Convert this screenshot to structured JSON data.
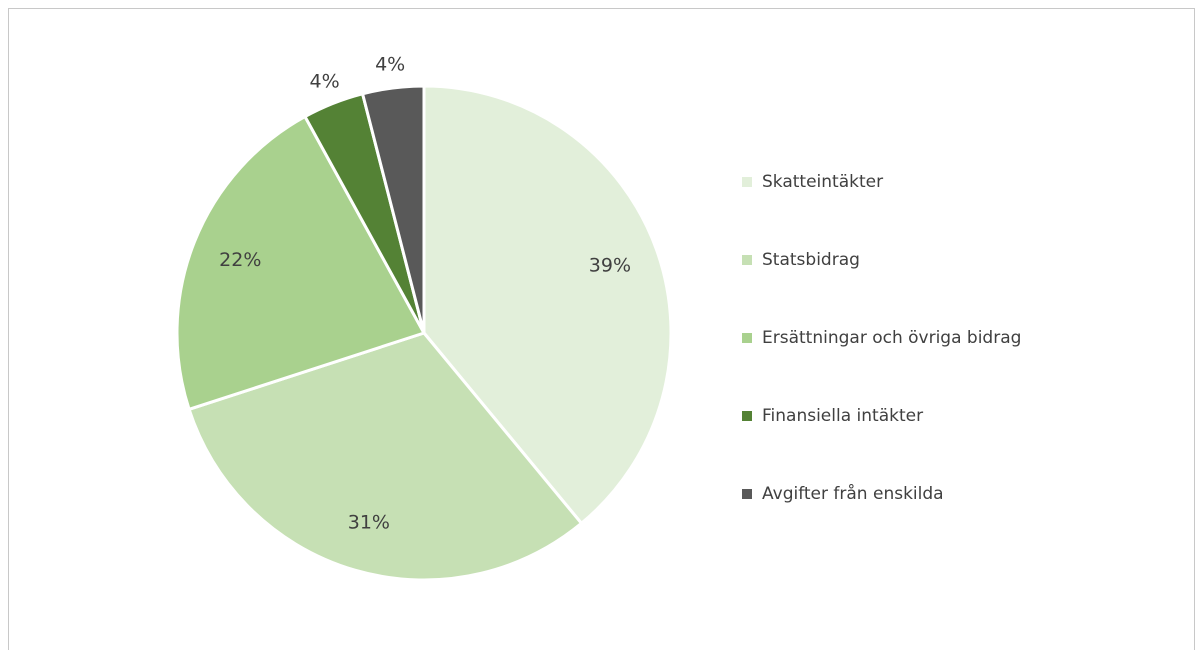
{
  "chart_data": {
    "type": "pie",
    "categories": [
      "Skatteintäkter",
      "Statsbidrag",
      "Ersättningar och övriga bidrag",
      "Finansiella intäkter",
      "Avgifter från enskilda"
    ],
    "values": [
      39,
      31,
      22,
      4,
      4
    ],
    "value_labels": [
      "39%",
      "31%",
      "22%",
      "4%",
      "4%"
    ],
    "colors": [
      "#e2efda",
      "#c6e0b4",
      "#a9d18e",
      "#548235",
      "#595959"
    ],
    "legend": "right"
  }
}
